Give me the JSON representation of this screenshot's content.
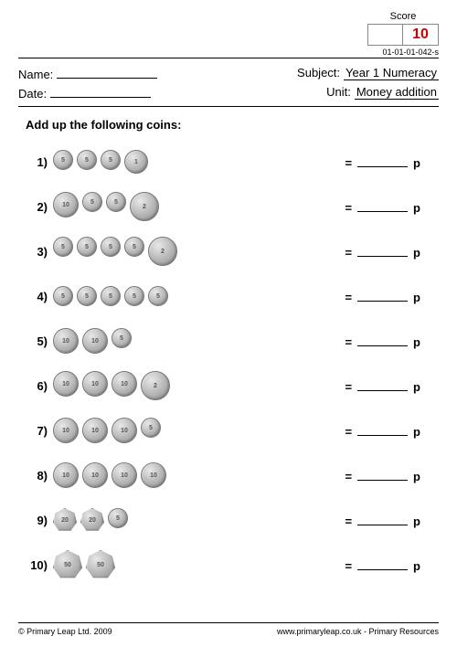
{
  "score": {
    "label": "Score",
    "value": "10"
  },
  "worksheet_id": "01-01-01-042-s",
  "header": {
    "name_label": "Name:",
    "date_label": "Date:",
    "subject_label": "Subject:",
    "subject_value": "Year 1 Numeracy",
    "unit_label": "Unit:",
    "unit_value": "Money addition"
  },
  "instruction": "Add up the following coins:",
  "coin_sizes": {
    "1p": 26,
    "2p": 32,
    "5p": 22,
    "10p": 28,
    "20p": 26,
    "50p": 32
  },
  "problems": [
    {
      "num": "1)",
      "coins": [
        "5p",
        "5p",
        "5p",
        "1p"
      ]
    },
    {
      "num": "2)",
      "coins": [
        "10p",
        "5p",
        "5p",
        "2p"
      ]
    },
    {
      "num": "3)",
      "coins": [
        "5p",
        "5p",
        "5p",
        "5p",
        "2p"
      ]
    },
    {
      "num": "4)",
      "coins": [
        "5p",
        "5p",
        "5p",
        "5p",
        "5p"
      ]
    },
    {
      "num": "5)",
      "coins": [
        "10p",
        "10p",
        "5p"
      ]
    },
    {
      "num": "6)",
      "coins": [
        "10p",
        "10p",
        "10p",
        "2p"
      ]
    },
    {
      "num": "7)",
      "coins": [
        "10p",
        "10p",
        "10p",
        "5p"
      ]
    },
    {
      "num": "8)",
      "coins": [
        "10p",
        "10p",
        "10p",
        "10p"
      ]
    },
    {
      "num": "9)",
      "coins": [
        "20p",
        "20p",
        "5p"
      ]
    },
    {
      "num": "10)",
      "coins": [
        "50p",
        "50p"
      ]
    }
  ],
  "answer": {
    "equals": "=",
    "unit": "p"
  },
  "footer": {
    "copyright": "© Primary Leap Ltd. 2009",
    "website": "www.primaryleap.co.uk - Primary Resources"
  }
}
